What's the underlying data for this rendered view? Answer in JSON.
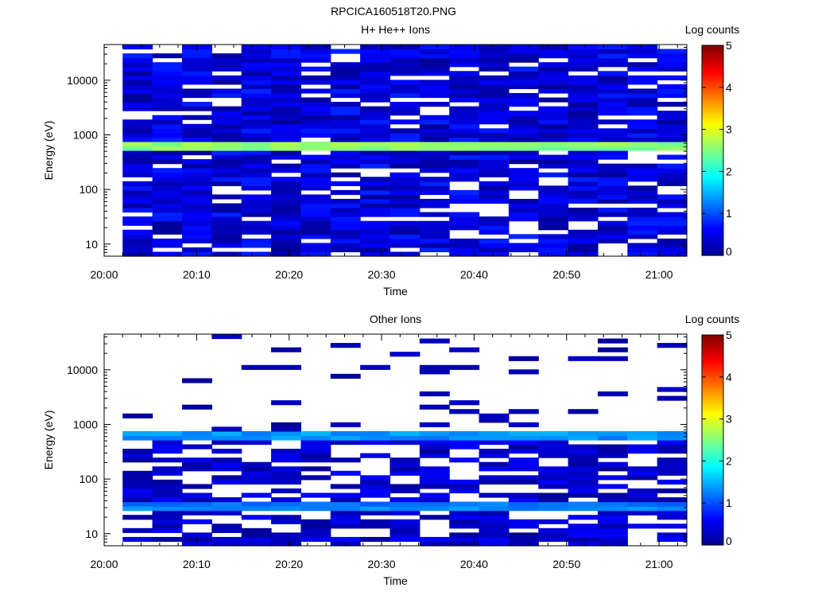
{
  "figure_title": "RPCICA160518T20.PNG",
  "colors": {
    "colormap": [
      "#00008f",
      "#0000ff",
      "#0080ff",
      "#00ffff",
      "#80ff80",
      "#ffff00",
      "#ff8000",
      "#ff0000",
      "#800000"
    ]
  },
  "chart_data": [
    {
      "type": "heatmap",
      "title": "H+ He++ Ions",
      "xlabel": "Time",
      "ylabel": "Energy (eV)",
      "x_ticks": [
        "20:00",
        "20:10",
        "20:20",
        "20:30",
        "20:40",
        "20:50",
        "21:00"
      ],
      "x_range": [
        "20:00",
        "21:03"
      ],
      "y_scale": "log",
      "y_ticks": [
        "10",
        "100",
        "1000",
        "10000"
      ],
      "y_range": [
        6,
        45000
      ],
      "data_time_start": "20:02",
      "time_bins": 19,
      "energy_bins": 48,
      "colorbar": {
        "label": "Log counts",
        "range": [
          0,
          5
        ],
        "ticks": [
          "0",
          "1",
          "2",
          "3",
          "4",
          "5"
        ]
      },
      "features": [
        {
          "energy_ev": 650,
          "log_counts": 2.6,
          "description": "persistent band"
        },
        {
          "energy_ev_range": [
            6,
            45000
          ],
          "log_counts": 0.4,
          "description": "background"
        }
      ]
    },
    {
      "type": "heatmap",
      "title": "Other Ions",
      "xlabel": "Time",
      "ylabel": "Energy (eV)",
      "x_ticks": [
        "20:00",
        "20:10",
        "20:20",
        "20:30",
        "20:40",
        "20:50",
        "21:00"
      ],
      "x_range": [
        "20:00",
        "21:03"
      ],
      "y_scale": "log",
      "y_ticks": [
        "10",
        "100",
        "1000",
        "10000"
      ],
      "y_range": [
        6,
        45000
      ],
      "data_time_start": "20:02",
      "time_bins": 19,
      "energy_bins": 48,
      "colorbar": {
        "label": "Log counts",
        "range": [
          0,
          5
        ],
        "ticks": [
          "0",
          "1",
          "2",
          "3",
          "4",
          "5"
        ]
      },
      "features": [
        {
          "energy_ev": 650,
          "log_counts": 1.4,
          "description": "persistent band"
        },
        {
          "energy_ev": 30,
          "log_counts": 1.3,
          "description": "persistent band"
        },
        {
          "energy_ev_range": [
            6,
            500
          ],
          "log_counts": 0.3,
          "description": "sparse low-energy counts"
        }
      ]
    }
  ]
}
